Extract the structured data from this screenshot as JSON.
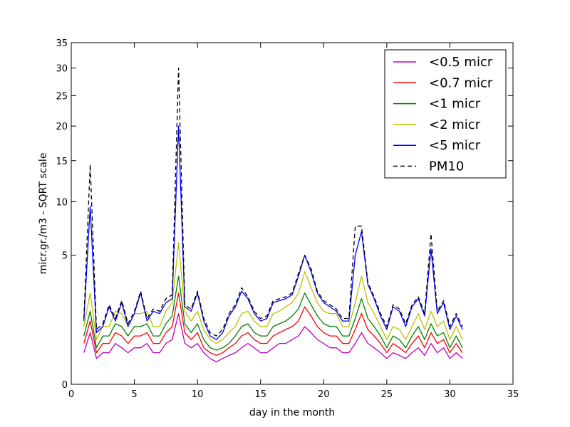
{
  "chart_data": {
    "type": "line",
    "title": "",
    "xlabel": "day in the month",
    "ylabel": "micr.gr./m3 - SQRT scale",
    "xlim": [
      0,
      35
    ],
    "ylim": [
      0,
      35
    ],
    "y_scale": "sqrt",
    "x_ticks": [
      0,
      5,
      10,
      15,
      20,
      25,
      30,
      35
    ],
    "y_ticks": [
      0,
      5,
      10,
      15,
      20,
      25,
      30,
      35
    ],
    "grid": false,
    "legend_position": "top-right",
    "x": [
      1.0,
      1.5,
      2.0,
      2.5,
      3.0,
      3.5,
      4.0,
      4.5,
      5.0,
      5.5,
      6.0,
      6.5,
      7.0,
      7.5,
      8.0,
      8.5,
      9.0,
      9.5,
      10.0,
      10.5,
      11.0,
      11.5,
      12.0,
      12.5,
      13.0,
      13.5,
      14.0,
      14.5,
      15.0,
      15.5,
      16.0,
      16.5,
      17.0,
      17.5,
      18.0,
      18.5,
      19.0,
      19.5,
      20.0,
      20.5,
      21.0,
      21.5,
      22.0,
      22.5,
      23.0,
      23.5,
      24.0,
      24.5,
      25.0,
      25.5,
      26.0,
      26.5,
      27.0,
      27.5,
      28.0,
      28.5,
      29.0,
      29.5,
      30.0,
      30.5,
      31.0
    ],
    "series": [
      {
        "name": "<0.5 micr",
        "color": "#bf00bf",
        "dash": "solid",
        "values": [
          0.3,
          0.8,
          0.2,
          0.3,
          0.3,
          0.5,
          0.4,
          0.3,
          0.4,
          0.4,
          0.5,
          0.3,
          0.3,
          0.5,
          0.6,
          1.5,
          0.5,
          0.4,
          0.5,
          0.3,
          0.2,
          0.15,
          0.2,
          0.25,
          0.3,
          0.4,
          0.5,
          0.4,
          0.3,
          0.3,
          0.4,
          0.5,
          0.5,
          0.6,
          0.7,
          1.0,
          0.8,
          0.6,
          0.5,
          0.4,
          0.4,
          0.3,
          0.3,
          0.5,
          0.8,
          0.5,
          0.4,
          0.3,
          0.2,
          0.3,
          0.25,
          0.2,
          0.3,
          0.4,
          0.25,
          0.5,
          0.3,
          0.4,
          0.2,
          0.3,
          0.2
        ]
      },
      {
        "name": "<0.7 micr",
        "color": "#ff0000",
        "dash": "solid",
        "values": [
          0.5,
          1.2,
          0.3,
          0.5,
          0.5,
          0.8,
          0.7,
          0.5,
          0.7,
          0.7,
          0.8,
          0.5,
          0.5,
          0.8,
          1.0,
          2.5,
          0.8,
          0.6,
          0.8,
          0.4,
          0.3,
          0.25,
          0.3,
          0.4,
          0.5,
          0.7,
          0.8,
          0.6,
          0.5,
          0.5,
          0.7,
          0.8,
          0.9,
          1.0,
          1.2,
          1.8,
          1.4,
          1.0,
          0.8,
          0.7,
          0.7,
          0.5,
          0.5,
          0.9,
          1.5,
          0.9,
          0.7,
          0.5,
          0.3,
          0.5,
          0.4,
          0.3,
          0.5,
          0.7,
          0.4,
          0.8,
          0.5,
          0.6,
          0.3,
          0.5,
          0.3
        ]
      },
      {
        "name": "<1 micr",
        "color": "#008000",
        "dash": "solid",
        "values": [
          0.7,
          1.6,
          0.4,
          0.7,
          0.7,
          1.1,
          1.0,
          0.7,
          1.0,
          1.0,
          1.1,
          0.7,
          0.7,
          1.1,
          1.4,
          3.5,
          1.1,
          0.8,
          1.1,
          0.6,
          0.4,
          0.35,
          0.4,
          0.5,
          0.7,
          1.0,
          1.1,
          0.8,
          0.7,
          0.7,
          1.0,
          1.1,
          1.2,
          1.4,
          1.7,
          2.5,
          1.9,
          1.4,
          1.1,
          1.0,
          1.0,
          0.7,
          0.7,
          1.3,
          2.2,
          1.3,
          1.0,
          0.7,
          0.4,
          0.7,
          0.6,
          0.4,
          0.7,
          1.0,
          0.6,
          1.1,
          0.7,
          0.8,
          0.4,
          0.7,
          0.4
        ]
      },
      {
        "name": "<2 micr",
        "color": "#bfbf00",
        "dash": "solid",
        "values": [
          1.0,
          2.5,
          0.6,
          1.0,
          1.0,
          1.6,
          1.5,
          1.0,
          1.5,
          1.5,
          1.6,
          1.0,
          1.0,
          1.6,
          2.0,
          6.0,
          1.6,
          1.2,
          1.6,
          0.9,
          0.6,
          0.5,
          0.6,
          0.8,
          1.0,
          1.5,
          1.6,
          1.2,
          1.0,
          1.0,
          1.5,
          1.6,
          1.8,
          2.0,
          2.5,
          3.8,
          2.8,
          2.0,
          1.6,
          1.5,
          1.5,
          1.0,
          1.0,
          2.0,
          3.5,
          2.0,
          1.5,
          1.0,
          0.6,
          1.0,
          0.9,
          0.6,
          1.0,
          1.5,
          0.9,
          1.6,
          1.0,
          1.2,
          0.6,
          1.0,
          0.6
        ]
      },
      {
        "name": "<5 micr",
        "color": "#0000ff",
        "dash": "solid",
        "values": [
          1.2,
          9.5,
          0.8,
          1.0,
          1.8,
          1.2,
          2.0,
          1.0,
          1.5,
          2.5,
          1.2,
          1.6,
          1.5,
          2.0,
          2.2,
          20.0,
          1.8,
          1.6,
          2.5,
          1.2,
          0.7,
          0.6,
          0.8,
          1.4,
          1.8,
          2.6,
          2.2,
          1.5,
          1.2,
          1.3,
          2.0,
          2.1,
          2.2,
          2.4,
          3.5,
          5.0,
          3.8,
          2.5,
          2.0,
          1.8,
          1.6,
          1.2,
          1.2,
          5.0,
          7.0,
          3.0,
          2.2,
          1.4,
          0.9,
          1.8,
          1.6,
          1.0,
          1.8,
          2.2,
          1.4,
          5.5,
          1.5,
          2.0,
          0.9,
          1.4,
          0.9
        ]
      },
      {
        "name": "PM10",
        "color": "#000000",
        "dash": "dashed",
        "values": [
          1.3,
          14.5,
          0.9,
          1.1,
          1.9,
          1.3,
          2.1,
          1.1,
          1.6,
          2.6,
          1.3,
          1.7,
          1.6,
          2.2,
          2.4,
          30.0,
          1.9,
          1.7,
          2.6,
          1.3,
          0.8,
          0.7,
          0.9,
          1.5,
          1.9,
          2.8,
          2.3,
          1.6,
          1.3,
          1.4,
          2.1,
          2.2,
          2.3,
          2.5,
          3.7,
          5.0,
          4.0,
          2.6,
          2.1,
          1.9,
          1.7,
          1.3,
          1.3,
          7.5,
          7.5,
          3.1,
          2.3,
          1.5,
          1.0,
          1.9,
          1.7,
          1.1,
          1.9,
          2.3,
          1.5,
          6.8,
          1.6,
          2.1,
          1.0,
          1.5,
          1.0
        ]
      }
    ]
  }
}
